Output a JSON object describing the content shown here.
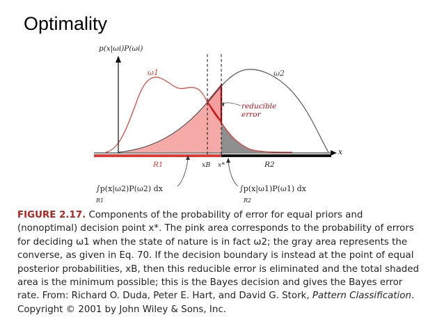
{
  "slide": {
    "title": "Optimality"
  },
  "figure": {
    "ylabel": "p(x|ωi)P(ωi)",
    "xlabel": "x",
    "curve1_label": "ω1",
    "curve2_label": "ω2",
    "annotation": {
      "line1": "reducible",
      "line2": "error"
    },
    "xB_label": "xB",
    "xstar_label": "x*",
    "region1_label": "R1",
    "region2_label": "R2",
    "integral_left": "∫p(x|ω2)P(ω2) dx",
    "integral_left_sub": "R1",
    "integral_right": "∫p(x|ω1)P(ω1) dx",
    "integral_right_sub": "R2",
    "colors": {
      "pink": "#f6aaa8",
      "red": "#e03a36",
      "darkred": "#b3121a",
      "gray": "#8a8a8a",
      "black": "#111111"
    }
  },
  "caption": {
    "label": "FIGURE 2.17.",
    "text1": " Components of the probability of error for equal priors and (nonoptimal) decision point x*. The pink area corresponds to the probability of errors for deciding ω1 when the state of nature is in fact ω2; the gray area represents the converse, as given in Eq. 70. If the decision boundary is instead at the point of equal posterior probabilities, xB, then this reducible error is eliminated and the total shaded area is the minimum possible; this is the Bayes decision and gives the Bayes error rate. From: Richard O. Duda, Peter E. Hart, and David G. Stork, ",
    "book": "Pattern Classification",
    "text2": ". Copyright © 2001 by John Wiley & Sons, Inc."
  }
}
